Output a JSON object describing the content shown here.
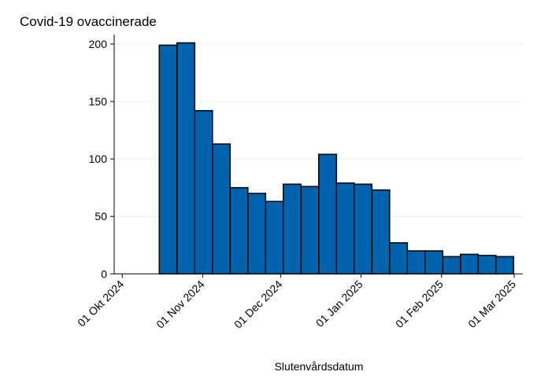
{
  "chart_data": {
    "type": "bar",
    "title": "Covid-19 ovaccinerade",
    "xlabel": "Slutenvårdsdatum",
    "ylabel": "",
    "ylim": [
      0,
      200
    ],
    "xlim": [
      "2024-09-28",
      "2025-03-04"
    ],
    "grid": true,
    "bar_color": "#0063AE",
    "bar_edge_color": "#0a0a0a",
    "yticks": [
      0,
      50,
      100,
      150,
      200
    ],
    "xticks": [
      {
        "date": "2024-10-01",
        "label": "01 Okt 2024"
      },
      {
        "date": "2024-11-01",
        "label": "01 Nov 2024"
      },
      {
        "date": "2024-12-01",
        "label": "01 Dec 2024"
      },
      {
        "date": "2025-01-01",
        "label": "01 Jan 2025"
      },
      {
        "date": "2025-02-01",
        "label": "01 Feb 2025"
      },
      {
        "date": "2025-03-01",
        "label": "01 Mar 2025"
      }
    ],
    "categories": [
      "2024-10-14",
      "2024-10-21",
      "2024-10-28",
      "2024-11-04",
      "2024-11-11",
      "2024-11-18",
      "2024-11-25",
      "2024-12-02",
      "2024-12-09",
      "2024-12-16",
      "2024-12-23",
      "2024-12-30",
      "2025-01-06",
      "2025-01-13",
      "2025-01-20",
      "2025-01-27",
      "2025-02-03",
      "2025-02-10",
      "2025-02-17",
      "2025-02-24"
    ],
    "values": [
      199,
      201,
      142,
      113,
      75,
      70,
      63,
      78,
      76,
      104,
      79,
      78,
      73,
      27,
      20,
      20,
      15,
      17,
      16,
      15
    ]
  }
}
